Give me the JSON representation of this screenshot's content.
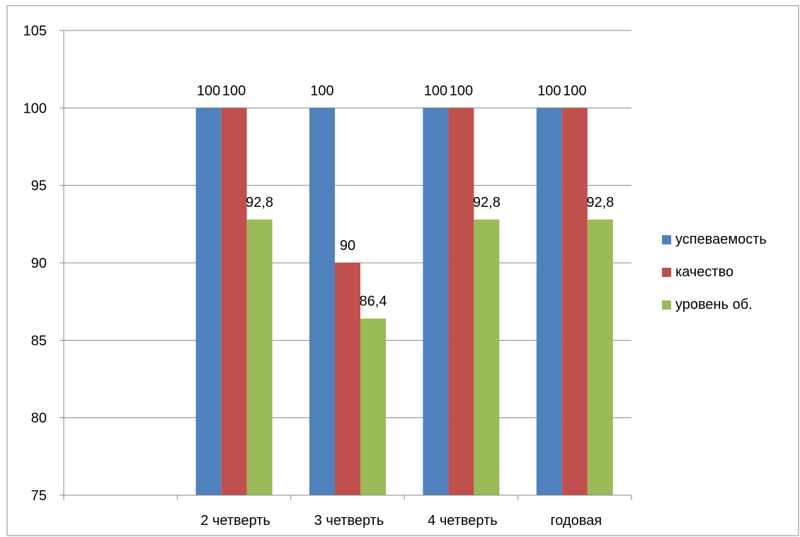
{
  "chart_data": {
    "type": "bar",
    "title": "",
    "xlabel": "",
    "ylabel": "",
    "ylim": [
      75,
      105
    ],
    "yticks": [
      75,
      80,
      85,
      90,
      95,
      100,
      105
    ],
    "grid": true,
    "legend_position": "right",
    "categories": [
      "",
      "2 четверть",
      "3 четверть",
      "4 четверть",
      "годовая"
    ],
    "series": [
      {
        "name": "успеваемость",
        "color": "#4F81BD",
        "values": [
          null,
          100,
          100,
          100,
          100
        ],
        "labels": [
          "",
          "100",
          "100",
          "100",
          "100"
        ]
      },
      {
        "name": "качество",
        "color": "#C0504D",
        "values": [
          null,
          100,
          90,
          100,
          100
        ],
        "labels": [
          "",
          "100",
          "90",
          "100",
          "100"
        ]
      },
      {
        "name": "уровень об.",
        "color": "#9BBB59",
        "values": [
          null,
          92.8,
          86.4,
          92.8,
          92.8
        ],
        "labels": [
          "",
          "92,8",
          "86,4",
          "92,8",
          "92,8"
        ]
      }
    ]
  }
}
